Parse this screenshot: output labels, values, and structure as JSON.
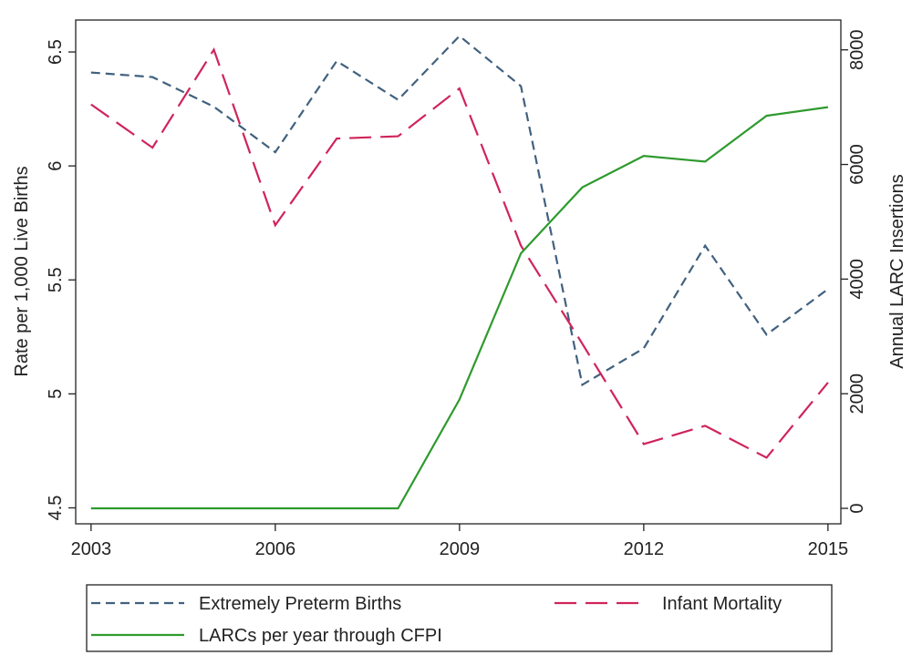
{
  "chart_data": {
    "type": "line",
    "y_label": "Rate per 1,000 Live Births",
    "y2_label": "Annual LARC Insertions",
    "x": [
      2003,
      2004,
      2005,
      2006,
      2007,
      2008,
      2009,
      2010,
      2011,
      2012,
      2013,
      2014,
      2015
    ],
    "xlim": [
      2002.75,
      2015.21
    ],
    "xticks": [
      2003,
      2006,
      2009,
      2012,
      2015
    ],
    "ylim": [
      4.43,
      6.64
    ],
    "yticks": [
      4.5,
      5,
      5.5,
      6,
      6.5
    ],
    "y2lim": [
      -270,
      8520
    ],
    "y2ticks": [
      0,
      2000,
      4000,
      6000,
      8000
    ],
    "legend": "bottom",
    "series": [
      {
        "name": "Extremely Preterm Births",
        "color": "#41617f",
        "dash": "short",
        "values": [
          6.41,
          6.39,
          6.26,
          6.06,
          6.46,
          6.29,
          6.57,
          6.35,
          5.04,
          5.2,
          5.65,
          5.26,
          5.46
        ]
      },
      {
        "name": "Infant Mortality",
        "color": "#d0245b",
        "dash": "long",
        "values": [
          6.27,
          6.08,
          6.51,
          5.74,
          6.12,
          6.13,
          6.34,
          5.65,
          5.22,
          4.78,
          4.86,
          4.72,
          5.05
        ]
      },
      {
        "name": "LARCs per year through CFPI",
        "color": "#2e9a2e",
        "dash": "solid",
        "axis": "y2",
        "values": [
          0,
          0,
          0,
          0,
          0,
          0,
          1900,
          4450,
          5600,
          6150,
          6050,
          6850,
          7000
        ]
      }
    ]
  }
}
